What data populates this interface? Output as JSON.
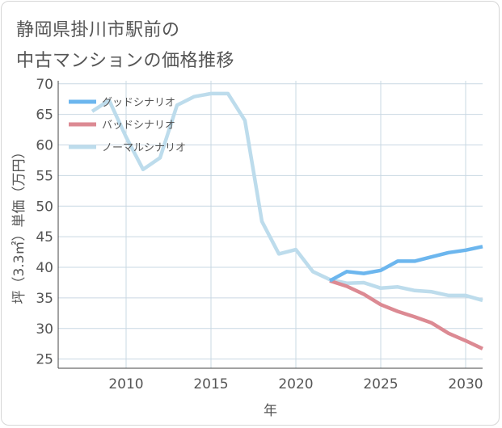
{
  "title_line1": "静岡県掛川市駅前の",
  "title_line2": "中古マンションの価格推移",
  "colors": {
    "good": "#6cb6ee",
    "bad": "#dc8a93",
    "normal": "#bddcec",
    "grid": "#c9d8e3",
    "axis": "#444444",
    "text": "#555555"
  },
  "chart_data": {
    "type": "line",
    "xlabel": "年",
    "ylabel": "坪（3.3㎡）単価（万円）",
    "xlim": [
      2006,
      2031
    ],
    "ylim": [
      23.5,
      70.5
    ],
    "xticks": [
      2010,
      2015,
      2020,
      2025,
      2030
    ],
    "yticks": [
      25,
      30,
      35,
      40,
      45,
      50,
      55,
      60,
      65,
      70
    ],
    "grid": true,
    "legend_position": "top-left",
    "series": [
      {
        "name": "グッドシナリオ",
        "color_key": "good",
        "x": [
          2022,
          2023,
          2024,
          2025,
          2026,
          2027,
          2028,
          2029,
          2030,
          2031
        ],
        "y": [
          37.8,
          39.3,
          39.0,
          39.5,
          41.0,
          41.0,
          41.7,
          42.4,
          42.8,
          43.4
        ]
      },
      {
        "name": "バッドシナリオ",
        "color_key": "bad",
        "x": [
          2022,
          2023,
          2024,
          2025,
          2026,
          2027,
          2028,
          2029,
          2030,
          2031
        ],
        "y": [
          37.8,
          36.9,
          35.6,
          33.9,
          32.8,
          31.9,
          30.9,
          29.2,
          28.0,
          26.7
        ]
      },
      {
        "name": "ノーマルシナリオ",
        "color_key": "normal",
        "x": [
          2008,
          2009,
          2010,
          2011,
          2012,
          2013,
          2014,
          2015,
          2016,
          2017,
          2018,
          2019,
          2020,
          2021,
          2022,
          2023,
          2024,
          2025,
          2026,
          2027,
          2028,
          2029,
          2030,
          2031
        ],
        "y": [
          65.5,
          67.3,
          61.3,
          56.0,
          57.9,
          66.5,
          67.9,
          68.4,
          68.4,
          64.0,
          47.5,
          42.2,
          42.9,
          39.3,
          38.0,
          37.4,
          37.5,
          36.6,
          36.8,
          36.2,
          36.0,
          35.4,
          35.4,
          34.6
        ]
      }
    ]
  }
}
